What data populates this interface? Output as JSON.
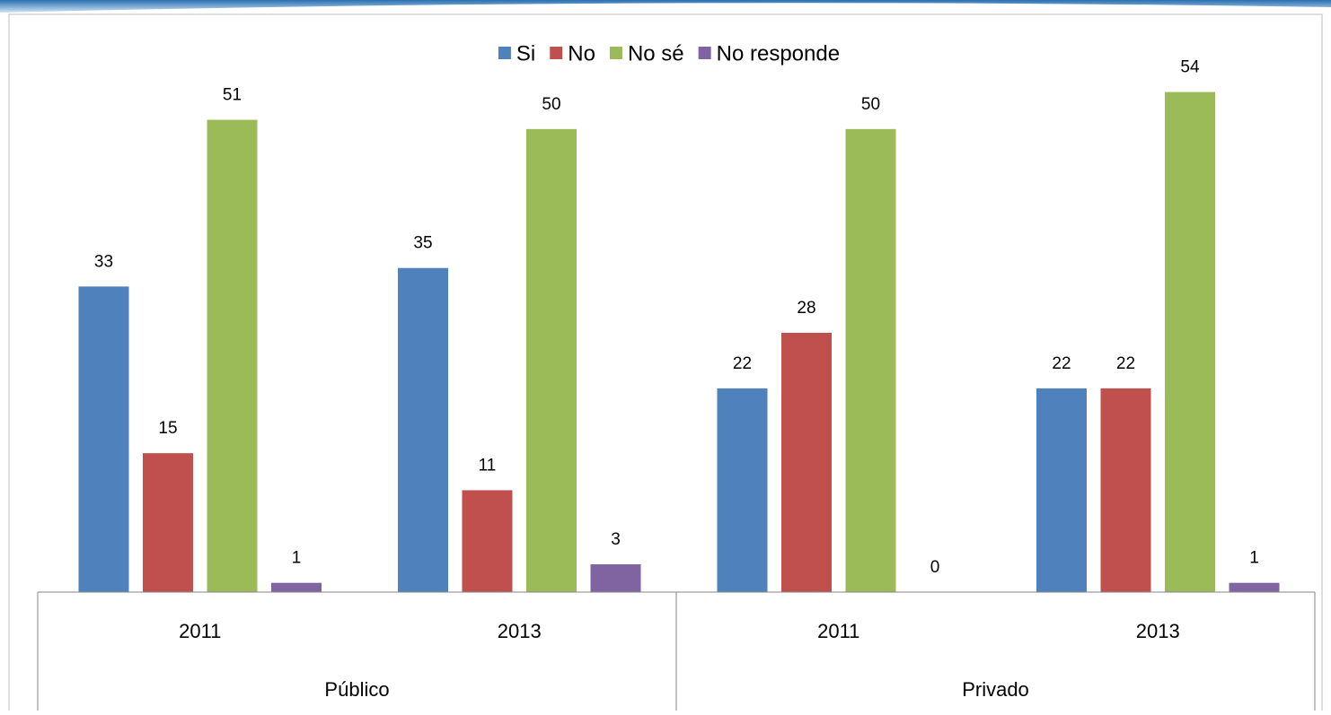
{
  "chart_data": {
    "type": "bar",
    "groups": [
      {
        "name": "Público",
        "categories": [
          "2011",
          "2013"
        ]
      },
      {
        "name": "Privado",
        "categories": [
          "2011",
          "2013"
        ]
      }
    ],
    "series": [
      {
        "name": "Si",
        "color": "#4f81bd",
        "values": [
          33,
          35,
          22,
          22
        ]
      },
      {
        "name": "No",
        "color": "#c0504d",
        "values": [
          15,
          11,
          28,
          22
        ]
      },
      {
        "name": "No sé",
        "color": "#9bbb59",
        "values": [
          51,
          50,
          50,
          54
        ]
      },
      {
        "name": "No responde",
        "color": "#8064a2",
        "values": [
          1,
          3,
          0,
          1
        ]
      }
    ],
    "ylim": [
      0,
      62
    ],
    "legend": "top"
  }
}
